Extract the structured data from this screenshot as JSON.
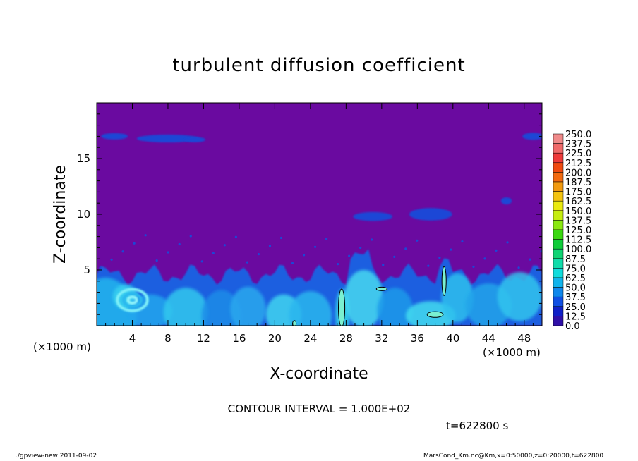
{
  "chart_data": {
    "type": "heatmap",
    "title": "turbulent diffusion coefficient",
    "xlabel": "X-coordinate",
    "ylabel": "Z-coordinate",
    "x_unit_left": "(×1000 m)",
    "x_unit_right": "(×1000 m)",
    "xlim": [
      0,
      50
    ],
    "ylim": [
      0,
      20
    ],
    "x_ticks": [
      4,
      8,
      12,
      16,
      20,
      24,
      28,
      32,
      36,
      40,
      44,
      48
    ],
    "y_ticks": [
      5,
      10,
      15
    ],
    "colorbar": {
      "levels": [
        "250.0",
        "237.5",
        "225.0",
        "212.5",
        "200.0",
        "187.5",
        "175.0",
        "162.5",
        "150.0",
        "137.5",
        "125.0",
        "112.5",
        "100.0",
        "87.5",
        "75.0",
        "62.5",
        "50.0",
        "37.5",
        "25.0",
        "12.5",
        "0.0"
      ],
      "colors": [
        "#f08a8a",
        "#f06a6a",
        "#ee3a3a",
        "#f04a10",
        "#f26a10",
        "#f29a10",
        "#f4c410",
        "#eaea10",
        "#c6ee10",
        "#8ae810",
        "#3ad810",
        "#10cc3a",
        "#10d474",
        "#10dcaa",
        "#10dcdc",
        "#10b4ec",
        "#1088ec",
        "#1050e4",
        "#1020c8",
        "#3010a8",
        "#6a0aa0"
      ]
    },
    "contour_interval": "CONTOUR INTERVAL = 1.000E+02",
    "time_label": "t=622800 s",
    "background_value": 0.0,
    "turbulent_layer_top_km": 5,
    "features": [
      {
        "x": 4,
        "z": 2.2,
        "note": "eddy"
      },
      {
        "x": 27.5,
        "z": 1.2,
        "note": "contour-100"
      },
      {
        "x": 38,
        "z": 1.0,
        "note": "contour-100"
      },
      {
        "x": 31,
        "z": 9.8,
        "note": "patch"
      },
      {
        "x": 38.5,
        "z": 10.0,
        "note": "patch"
      },
      {
        "x": 8,
        "z": 16.8,
        "note": "thin layer"
      }
    ]
  },
  "footer": {
    "left": "./gpview-new  2011-09-02",
    "right": "MarsCond_Km.nc@Km,x=0:50000,z=0:20000,t=622800"
  },
  "colors": {
    "background": "#6a0aa0",
    "frame": "#000000"
  }
}
